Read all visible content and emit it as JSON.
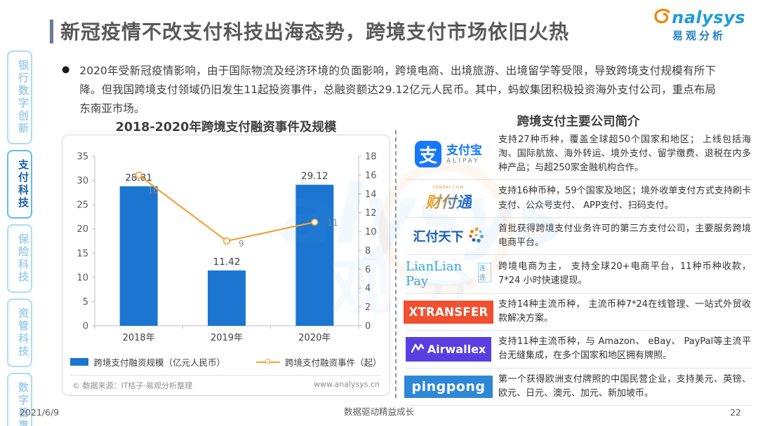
{
  "header": {
    "title": "新冠疫情不改支付科技出海态势，跨境支付市场依旧火热",
    "logo": {
      "brand": "nalysys",
      "brand_cn": "易观分析"
    }
  },
  "sidebar": {
    "items": [
      {
        "label": "银行数字创新",
        "active": false
      },
      {
        "label": "支付科技",
        "active": true
      },
      {
        "label": "保险科技",
        "active": false
      },
      {
        "label": "资管科技",
        "active": false
      },
      {
        "label": "数字普惠",
        "active": false
      }
    ]
  },
  "intro": {
    "bullet": "●",
    "text": "2020年受新冠疫情影响，由于国际物流及经济环境的负面影响，跨境电商、出境旅游、出境留学等受限，导致跨境支付规模有所下降。但我国跨境支付领域仍旧发生11起投资事件，总融资额达29.12亿元人民币。其中，蚂蚁集团积极投资海外支付公司，重点布局东南亚市场。"
  },
  "chart_data": {
    "type": "bar",
    "title": "2018-2020年跨境支付融资事件及规模",
    "categories": [
      "2018年",
      "2019年",
      "2020年"
    ],
    "series": [
      {
        "name": "跨境支付融资规模（亿元人民币）",
        "type": "bar",
        "axis": "left",
        "values": [
          28.81,
          11.42,
          29.12
        ],
        "color": "#1B75D1"
      },
      {
        "name": "跨境支付融资事件（起）",
        "type": "line",
        "axis": "right",
        "values": [
          16,
          9,
          11
        ],
        "color": "#F2A33A"
      }
    ],
    "left_axis": {
      "min": 0,
      "max": 35,
      "step": 5
    },
    "right_axis": {
      "min": 0,
      "max": 18,
      "step": 2
    },
    "legend_position": "bottom",
    "grid": false,
    "source": "© 数据来源：IT桔子·易观分析整理",
    "website": "www.analysys.cn"
  },
  "companies": {
    "title": "跨境支付主要公司简介",
    "rows": [
      {
        "logo": "支付宝",
        "logo_sub": "ALIPAY",
        "icon_char": "支",
        "desc": "支持27种币种，覆盖全球超50个国家和地区； 上线包括海淘、国际航旅、海外转运、境外支付、留学缴费、退税在内多种产品；与超250家金融机构合作。"
      },
      {
        "logo": "财付通",
        "logo_sub": "TENPAY.COM",
        "desc": "支持16种币种，59个国家及地区；境外收单支付方式支持刷卡支付、公众号支付、 APP支付、扫码支付。"
      },
      {
        "logo": "汇付天下",
        "desc": "首批获得跨境支付业务许可的第三方支付公司，主要服务跨境电商平台。"
      },
      {
        "logo": "LianLian Pay",
        "logo_sub": "连连",
        "desc": "跨境电商为主， 支持全球20+电商平台，11种币种收款，7*24 小时快速提现。"
      },
      {
        "logo": "XTRANSFER",
        "desc": "支持14种主流币种， 主流币种7*24在线管理、一站式外贸收款解决方案。"
      },
      {
        "logo": "Airwallex",
        "desc": "支持11种主流币种，与 Amazon、 eBay、 PayPal等主流平台无缝集成，在多个国家和地区拥有牌照。"
      },
      {
        "logo": "pingpong",
        "desc": "第一个获得欧洲支付牌照的中国民营企业，支持美元、英镑、欧元、日元、澳元、加元、新加坡币。"
      }
    ]
  },
  "footer": {
    "date": "2021/6/9",
    "slogan": "数据驱动精益成长",
    "page_number": "22"
  },
  "colors": {
    "bar": "#1B75D1",
    "line": "#F2A33A",
    "accent_bar": "#6B7C93",
    "active_tab": "#1A5FA8"
  }
}
